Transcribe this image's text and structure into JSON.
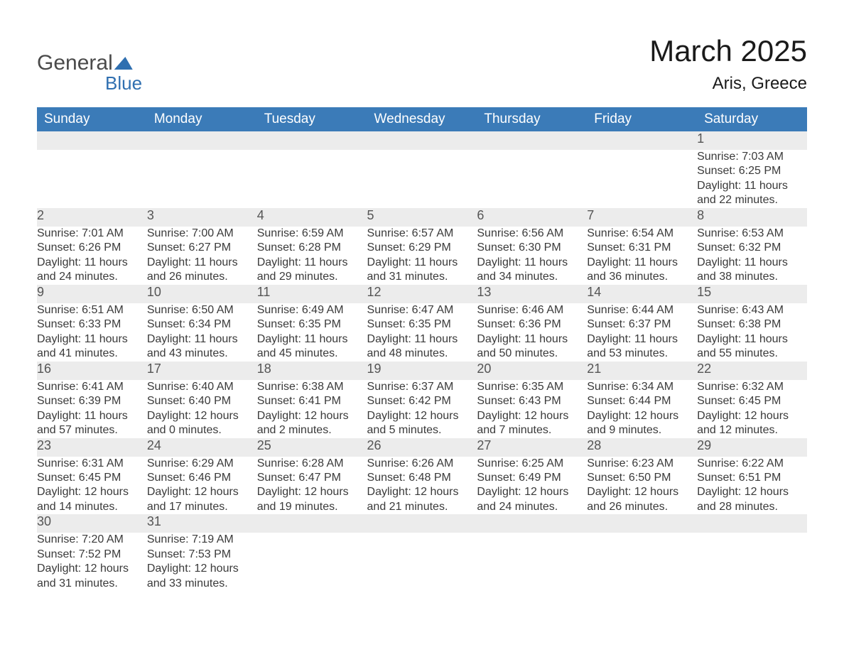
{
  "logo": {
    "text1": "General",
    "text2": "Blue",
    "shape_color": "#2f6fb0"
  },
  "header": {
    "month_title": "March 2025",
    "location": "Aris, Greece"
  },
  "colors": {
    "header_bg": "#3b7bb8",
    "header_text": "#ffffff",
    "daynum_bg": "#ececec",
    "daynum_border": "#3b7bb8",
    "body_text": "#3a3a3a"
  },
  "days_of_week": [
    "Sunday",
    "Monday",
    "Tuesday",
    "Wednesday",
    "Thursday",
    "Friday",
    "Saturday"
  ],
  "weeks": [
    [
      null,
      null,
      null,
      null,
      null,
      null,
      {
        "n": "1",
        "sunrise": "Sunrise: 7:03 AM",
        "sunset": "Sunset: 6:25 PM",
        "d1": "Daylight: 11 hours",
        "d2": "and 22 minutes."
      }
    ],
    [
      {
        "n": "2",
        "sunrise": "Sunrise: 7:01 AM",
        "sunset": "Sunset: 6:26 PM",
        "d1": "Daylight: 11 hours",
        "d2": "and 24 minutes."
      },
      {
        "n": "3",
        "sunrise": "Sunrise: 7:00 AM",
        "sunset": "Sunset: 6:27 PM",
        "d1": "Daylight: 11 hours",
        "d2": "and 26 minutes."
      },
      {
        "n": "4",
        "sunrise": "Sunrise: 6:59 AM",
        "sunset": "Sunset: 6:28 PM",
        "d1": "Daylight: 11 hours",
        "d2": "and 29 minutes."
      },
      {
        "n": "5",
        "sunrise": "Sunrise: 6:57 AM",
        "sunset": "Sunset: 6:29 PM",
        "d1": "Daylight: 11 hours",
        "d2": "and 31 minutes."
      },
      {
        "n": "6",
        "sunrise": "Sunrise: 6:56 AM",
        "sunset": "Sunset: 6:30 PM",
        "d1": "Daylight: 11 hours",
        "d2": "and 34 minutes."
      },
      {
        "n": "7",
        "sunrise": "Sunrise: 6:54 AM",
        "sunset": "Sunset: 6:31 PM",
        "d1": "Daylight: 11 hours",
        "d2": "and 36 minutes."
      },
      {
        "n": "8",
        "sunrise": "Sunrise: 6:53 AM",
        "sunset": "Sunset: 6:32 PM",
        "d1": "Daylight: 11 hours",
        "d2": "and 38 minutes."
      }
    ],
    [
      {
        "n": "9",
        "sunrise": "Sunrise: 6:51 AM",
        "sunset": "Sunset: 6:33 PM",
        "d1": "Daylight: 11 hours",
        "d2": "and 41 minutes."
      },
      {
        "n": "10",
        "sunrise": "Sunrise: 6:50 AM",
        "sunset": "Sunset: 6:34 PM",
        "d1": "Daylight: 11 hours",
        "d2": "and 43 minutes."
      },
      {
        "n": "11",
        "sunrise": "Sunrise: 6:49 AM",
        "sunset": "Sunset: 6:35 PM",
        "d1": "Daylight: 11 hours",
        "d2": "and 45 minutes."
      },
      {
        "n": "12",
        "sunrise": "Sunrise: 6:47 AM",
        "sunset": "Sunset: 6:35 PM",
        "d1": "Daylight: 11 hours",
        "d2": "and 48 minutes."
      },
      {
        "n": "13",
        "sunrise": "Sunrise: 6:46 AM",
        "sunset": "Sunset: 6:36 PM",
        "d1": "Daylight: 11 hours",
        "d2": "and 50 minutes."
      },
      {
        "n": "14",
        "sunrise": "Sunrise: 6:44 AM",
        "sunset": "Sunset: 6:37 PM",
        "d1": "Daylight: 11 hours",
        "d2": "and 53 minutes."
      },
      {
        "n": "15",
        "sunrise": "Sunrise: 6:43 AM",
        "sunset": "Sunset: 6:38 PM",
        "d1": "Daylight: 11 hours",
        "d2": "and 55 minutes."
      }
    ],
    [
      {
        "n": "16",
        "sunrise": "Sunrise: 6:41 AM",
        "sunset": "Sunset: 6:39 PM",
        "d1": "Daylight: 11 hours",
        "d2": "and 57 minutes."
      },
      {
        "n": "17",
        "sunrise": "Sunrise: 6:40 AM",
        "sunset": "Sunset: 6:40 PM",
        "d1": "Daylight: 12 hours",
        "d2": "and 0 minutes."
      },
      {
        "n": "18",
        "sunrise": "Sunrise: 6:38 AM",
        "sunset": "Sunset: 6:41 PM",
        "d1": "Daylight: 12 hours",
        "d2": "and 2 minutes."
      },
      {
        "n": "19",
        "sunrise": "Sunrise: 6:37 AM",
        "sunset": "Sunset: 6:42 PM",
        "d1": "Daylight: 12 hours",
        "d2": "and 5 minutes."
      },
      {
        "n": "20",
        "sunrise": "Sunrise: 6:35 AM",
        "sunset": "Sunset: 6:43 PM",
        "d1": "Daylight: 12 hours",
        "d2": "and 7 minutes."
      },
      {
        "n": "21",
        "sunrise": "Sunrise: 6:34 AM",
        "sunset": "Sunset: 6:44 PM",
        "d1": "Daylight: 12 hours",
        "d2": "and 9 minutes."
      },
      {
        "n": "22",
        "sunrise": "Sunrise: 6:32 AM",
        "sunset": "Sunset: 6:45 PM",
        "d1": "Daylight: 12 hours",
        "d2": "and 12 minutes."
      }
    ],
    [
      {
        "n": "23",
        "sunrise": "Sunrise: 6:31 AM",
        "sunset": "Sunset: 6:45 PM",
        "d1": "Daylight: 12 hours",
        "d2": "and 14 minutes."
      },
      {
        "n": "24",
        "sunrise": "Sunrise: 6:29 AM",
        "sunset": "Sunset: 6:46 PM",
        "d1": "Daylight: 12 hours",
        "d2": "and 17 minutes."
      },
      {
        "n": "25",
        "sunrise": "Sunrise: 6:28 AM",
        "sunset": "Sunset: 6:47 PM",
        "d1": "Daylight: 12 hours",
        "d2": "and 19 minutes."
      },
      {
        "n": "26",
        "sunrise": "Sunrise: 6:26 AM",
        "sunset": "Sunset: 6:48 PM",
        "d1": "Daylight: 12 hours",
        "d2": "and 21 minutes."
      },
      {
        "n": "27",
        "sunrise": "Sunrise: 6:25 AM",
        "sunset": "Sunset: 6:49 PM",
        "d1": "Daylight: 12 hours",
        "d2": "and 24 minutes."
      },
      {
        "n": "28",
        "sunrise": "Sunrise: 6:23 AM",
        "sunset": "Sunset: 6:50 PM",
        "d1": "Daylight: 12 hours",
        "d2": "and 26 minutes."
      },
      {
        "n": "29",
        "sunrise": "Sunrise: 6:22 AM",
        "sunset": "Sunset: 6:51 PM",
        "d1": "Daylight: 12 hours",
        "d2": "and 28 minutes."
      }
    ],
    [
      {
        "n": "30",
        "sunrise": "Sunrise: 7:20 AM",
        "sunset": "Sunset: 7:52 PM",
        "d1": "Daylight: 12 hours",
        "d2": "and 31 minutes."
      },
      {
        "n": "31",
        "sunrise": "Sunrise: 7:19 AM",
        "sunset": "Sunset: 7:53 PM",
        "d1": "Daylight: 12 hours",
        "d2": "and 33 minutes."
      },
      null,
      null,
      null,
      null,
      null
    ]
  ]
}
